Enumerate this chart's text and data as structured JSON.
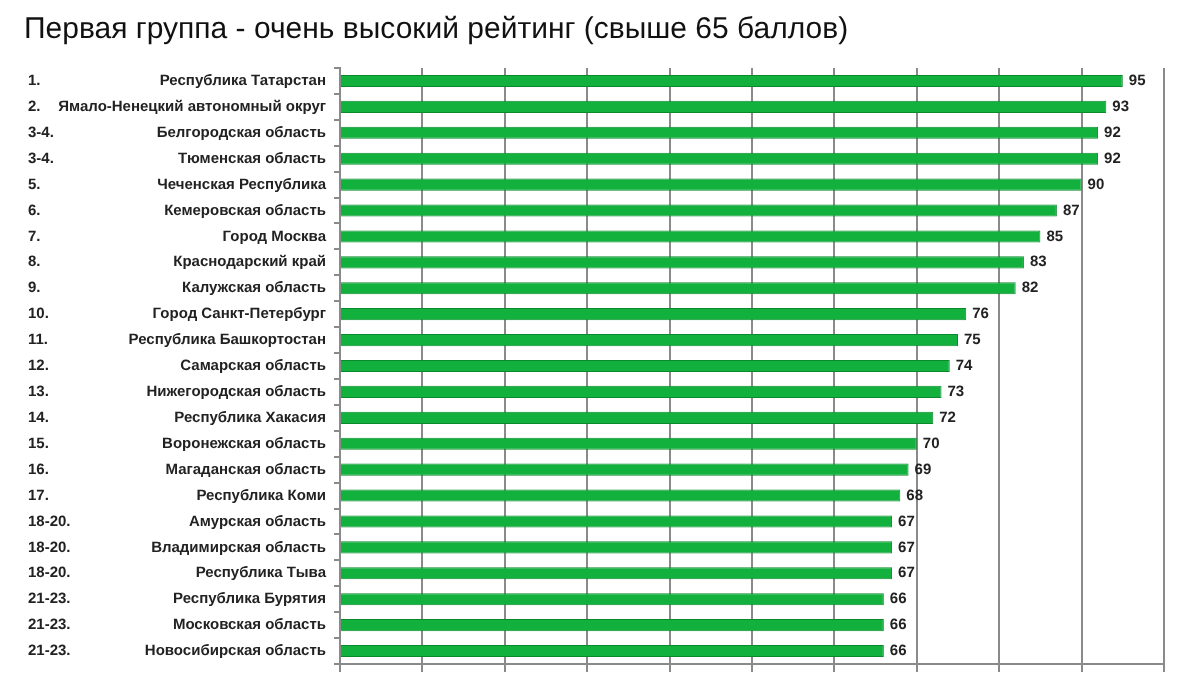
{
  "chart_data": {
    "type": "bar",
    "orientation": "horizontal",
    "title": "Первая группа - очень высокий рейтинг (свыше 65 баллов)",
    "categories": [
      "Республика Татарстан",
      "Ямало-Ненецкий автономный округ",
      "Белгородская область",
      "Тюменская область",
      "Чеченская Республика",
      "Кемеровская область",
      "Город Москва",
      "Краснодарский край",
      "Калужская область",
      "Город Санкт-Петербург",
      "Республика Башкортостан",
      "Самарская область",
      "Нижегородская область",
      "Республика Хакасия",
      "Воронежская область",
      "Магаданская область",
      "Республика Коми",
      "Амурская область",
      "Владимирская область",
      "Республика Тыва",
      "Республика Бурятия",
      "Московская область",
      "Новосибирская область"
    ],
    "values": [
      95,
      93,
      92,
      92,
      90,
      87,
      85,
      83,
      82,
      76,
      75,
      74,
      73,
      72,
      70,
      69,
      68,
      67,
      67,
      67,
      66,
      66,
      66
    ],
    "color": "#12b03c",
    "data_labels": true,
    "xlim": [
      0,
      100
    ],
    "xticks": [
      {
        "value": 0,
        "label": null
      },
      {
        "value": 10,
        "label": null
      },
      {
        "value": 20,
        "label": null
      },
      {
        "value": 30,
        "label": null
      },
      {
        "value": 40,
        "label": null
      },
      {
        "value": 50,
        "label": null
      },
      {
        "value": 60,
        "label": null
      },
      {
        "value": 70,
        "label": null
      },
      {
        "value": 80,
        "label": null
      },
      {
        "value": 90,
        "label": null
      },
      {
        "value": 100,
        "label": null
      }
    ],
    "tick_labels": "y",
    "grid": "x",
    "legend": false,
    "annotations": [
      "1.",
      "2.",
      "3-4.",
      "3-4.",
      "5.",
      "6.",
      "7.",
      "8.",
      "9.",
      "10.",
      "11.",
      "12.",
      "13.",
      "14.",
      "15.",
      "16.",
      "17.",
      "18-20.",
      "18-20.",
      "18-20.",
      "21-23.",
      "21-23.",
      "21-23."
    ]
  }
}
